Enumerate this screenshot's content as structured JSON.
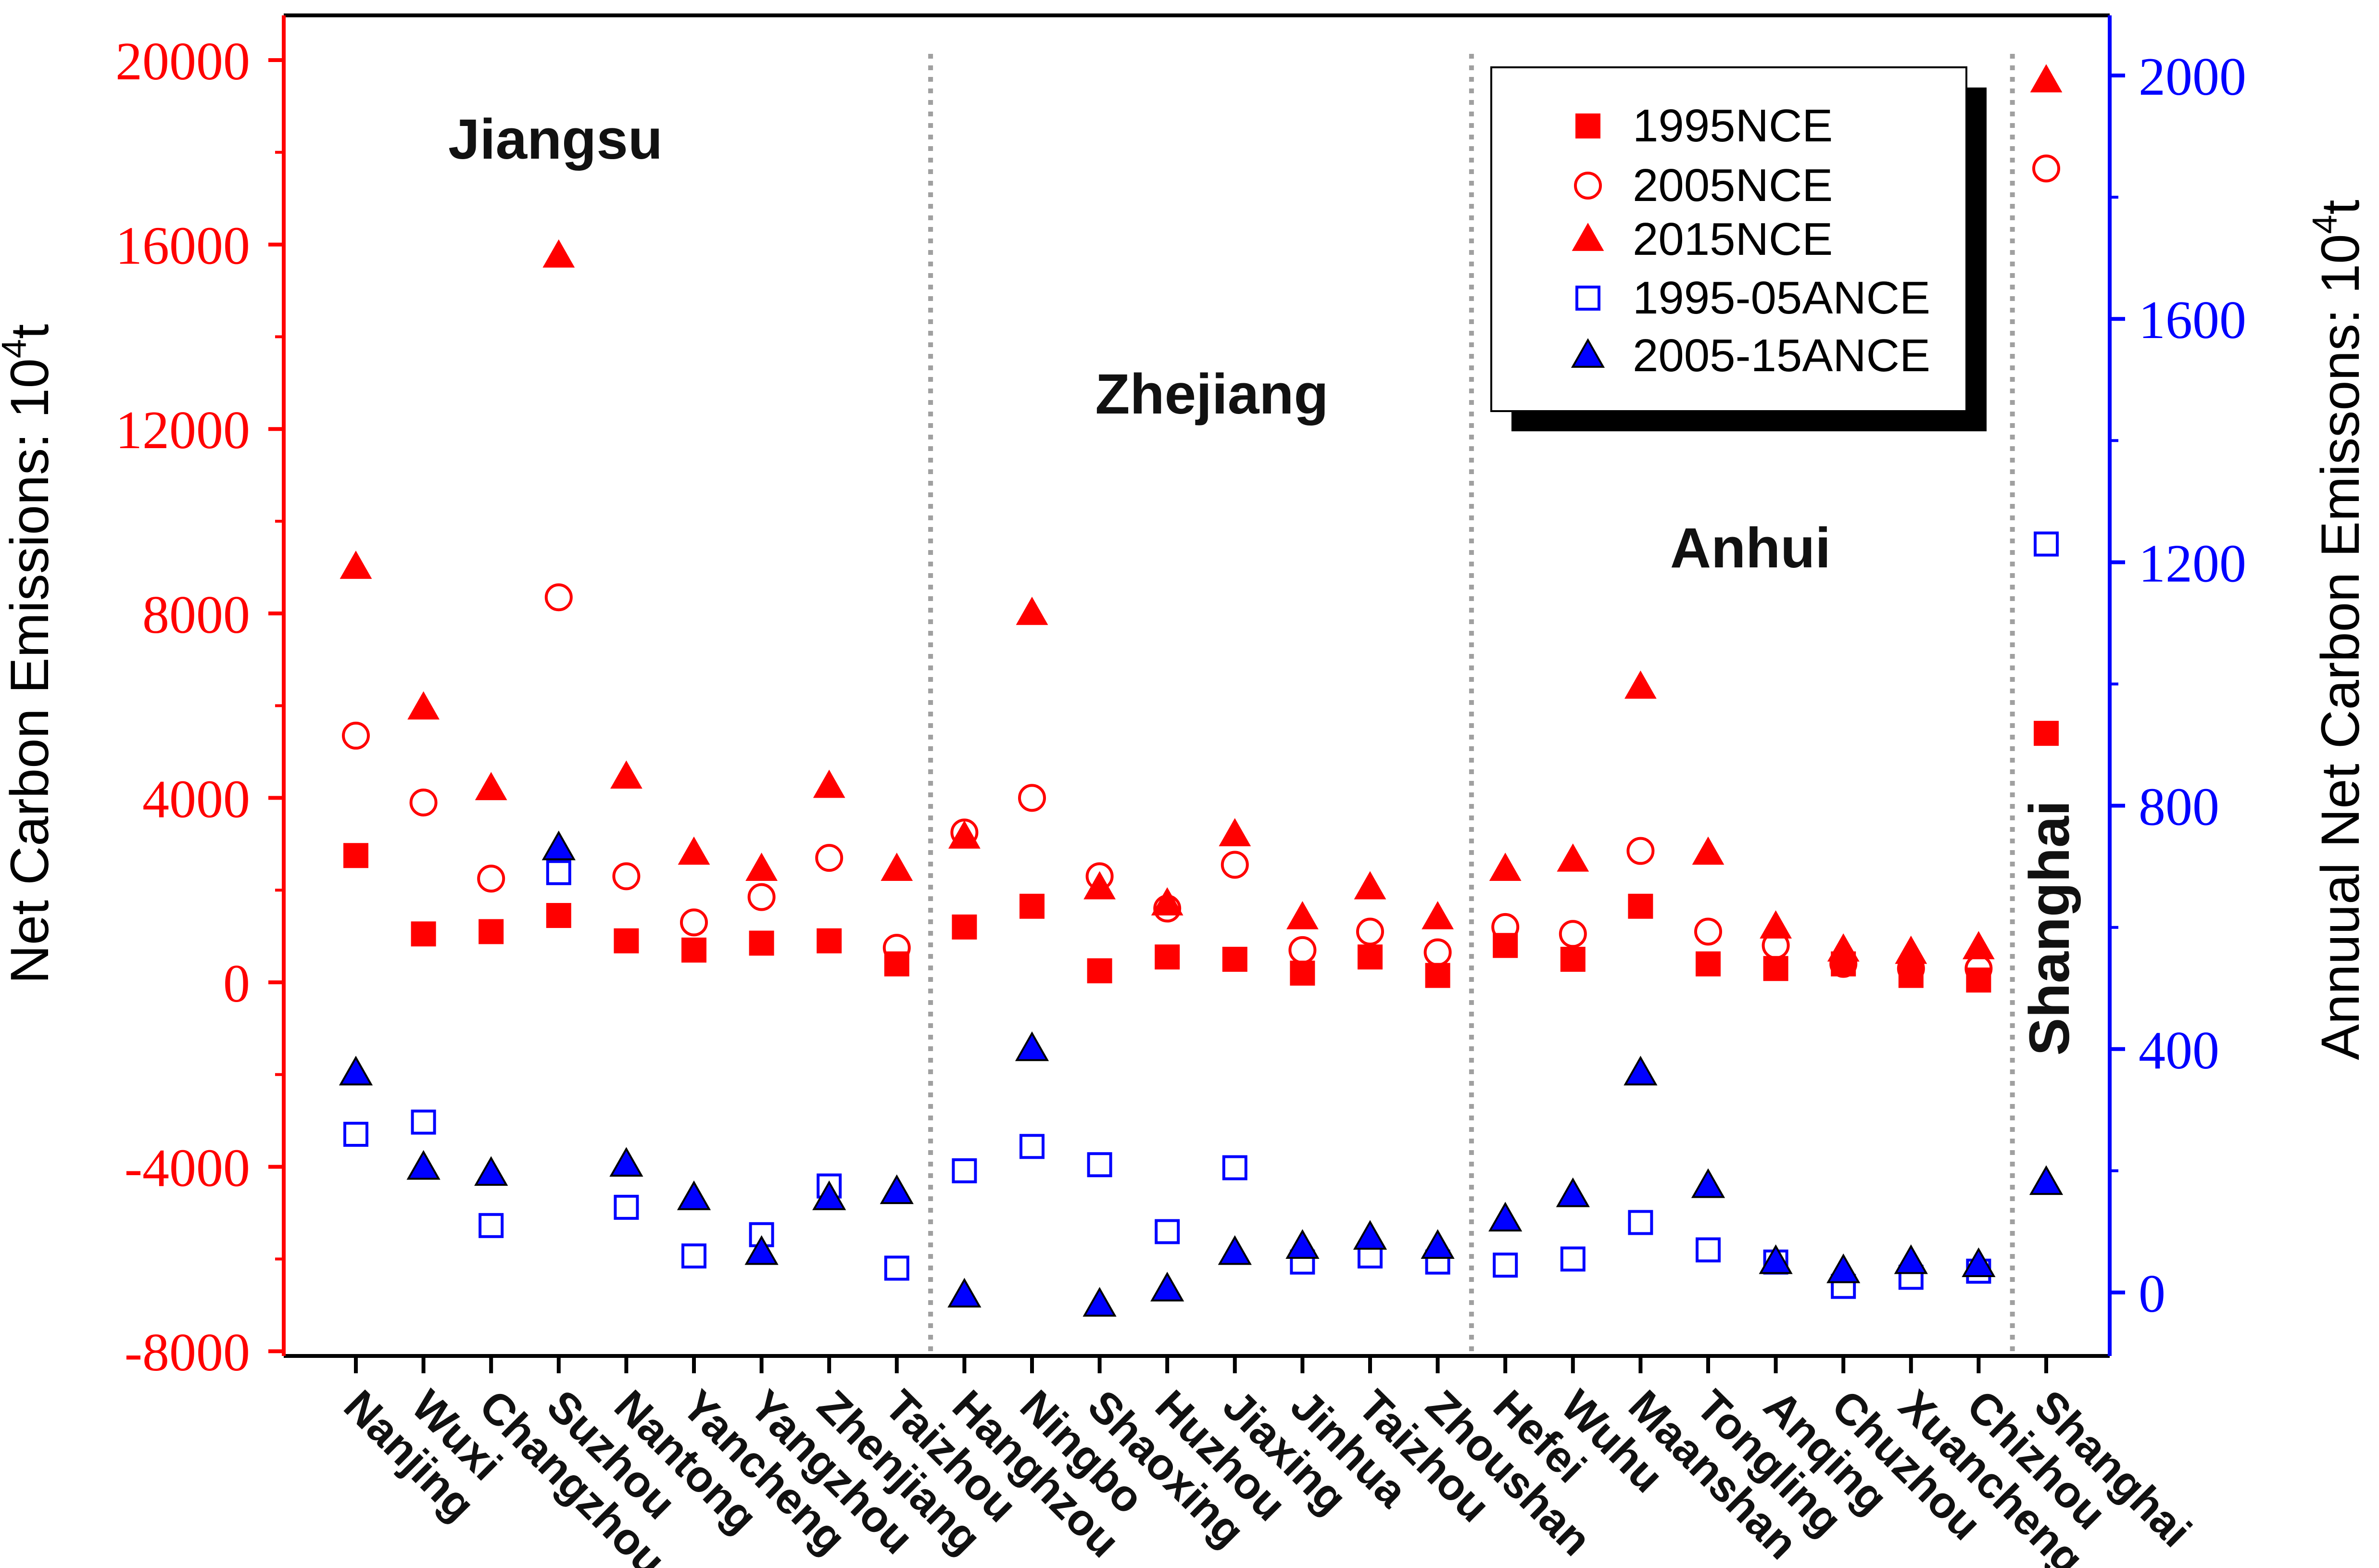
{
  "chart_data": {
    "type": "scatter",
    "categories": [
      "Nanjing",
      "Wuxi",
      "Changzhou",
      "Suzhou",
      "Nantong",
      "Yancheng",
      "Yangzhou",
      "Zhenjiang",
      "Taizhou",
      "Hanghzou",
      "Ningbo",
      "Shaoxing",
      "Huzhou",
      "Jiaxing",
      "Jinhua",
      "Taizhou",
      "Zhoushan",
      "Hefei",
      "Wuhu",
      "Maanshan",
      "Tongling",
      "Anqing",
      "Chuzhou",
      "Xuancheng",
      "Chizhou",
      "Shanghai"
    ],
    "left_axis": {
      "label": "Net Carbon Emissions: 10",
      "label_sup": "4",
      "label_tail": "t",
      "range": [
        -8000,
        20000
      ],
      "ticks": [
        "-8000",
        "-4000",
        "0",
        "4000",
        "8000",
        "12000",
        "16000",
        "20000"
      ],
      "color": "#ff0000"
    },
    "right_axis": {
      "label": "Annuual Net Carbon Emissons: 10",
      "label_sup": "4",
      "label_tail": "t",
      "range": [
        -100,
        2000
      ],
      "ticks": [
        "0",
        "400",
        "800",
        "1200",
        "1600",
        "2000"
      ],
      "color": "#0000ff"
    },
    "series": [
      {
        "name": "1995NCE",
        "axis": "left",
        "marker": "filled-square",
        "color": "#ff0000",
        "values": [
          2750,
          1050,
          1100,
          1450,
          900,
          700,
          850,
          900,
          400,
          1200,
          1650,
          250,
          550,
          500,
          200,
          550,
          150,
          800,
          500,
          1650,
          400,
          300,
          400,
          150,
          50,
          5400
        ]
      },
      {
        "name": "2005NCE",
        "axis": "left",
        "marker": "open-circle",
        "color": "#ff0000",
        "values": [
          5350,
          3900,
          2250,
          8350,
          2300,
          1300,
          1850,
          2700,
          750,
          3250,
          4000,
          2300,
          1600,
          2550,
          700,
          1100,
          650,
          1200,
          1050,
          2850,
          1100,
          800,
          400,
          300,
          300,
          17650
        ]
      },
      {
        "name": "2015NCE",
        "axis": "left",
        "marker": "filled-triangle",
        "color": "#ff0000",
        "values": [
          9000,
          5950,
          4200,
          15750,
          4450,
          2800,
          2450,
          4250,
          2450,
          3150,
          8000,
          2050,
          1700,
          3200,
          1400,
          2050,
          1400,
          2450,
          2650,
          6400,
          2800,
          1200,
          700,
          650,
          750,
          19550
        ]
      },
      {
        "name": "1995-05ANCE",
        "axis": "right",
        "marker": "open-square",
        "color": "#0000ff",
        "values": [
          260,
          280,
          110,
          690,
          140,
          60,
          95,
          175,
          40,
          200,
          240,
          210,
          100,
          205,
          50,
          60,
          50,
          45,
          55,
          115,
          70,
          50,
          10,
          25,
          35,
          1230
        ]
      },
      {
        "name": "2005-15ANCE",
        "axis": "right",
        "marker": "filled-triangle",
        "color": "#0000ff",
        "values": [
          360,
          205,
          195,
          730,
          210,
          155,
          65,
          155,
          165,
          -5,
          400,
          -20,
          5,
          65,
          75,
          90,
          75,
          120,
          160,
          360,
          175,
          50,
          35,
          50,
          45,
          180
        ]
      }
    ],
    "regions": [
      {
        "label": "Jiangsu"
      },
      {
        "label": "Zhejiang"
      },
      {
        "label": "Anhui"
      },
      {
        "label": "Shanghai"
      }
    ],
    "legend_position": "top-right"
  }
}
